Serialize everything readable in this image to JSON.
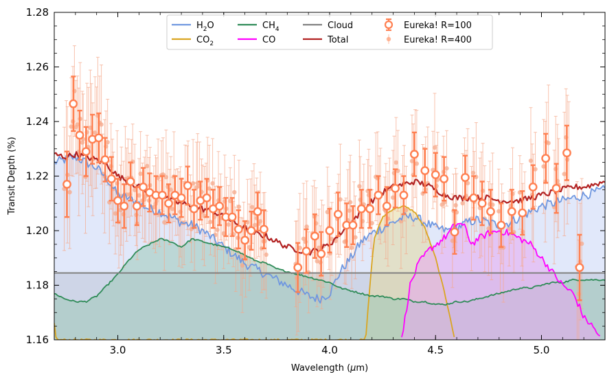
{
  "chart_data": {
    "type": "line",
    "title": "",
    "xlabel_main": "Wavelength (",
    "xlabel_mu": "μ",
    "xlabel_tail": "m)",
    "ylabel": "Transit Depth (%)",
    "xlim": [
      2.7,
      5.3
    ],
    "ylim": [
      1.16,
      1.28
    ],
    "x_ticks": [
      {
        "value": 3.0,
        "label": "3.0"
      },
      {
        "value": 3.5,
        "label": "3.5"
      },
      {
        "value": 4.0,
        "label": "4.0"
      },
      {
        "value": 4.5,
        "label": "4.5"
      },
      {
        "value": 5.0,
        "label": "5.0"
      }
    ],
    "y_ticks": [
      {
        "value": 1.16,
        "label": "1.16"
      },
      {
        "value": 1.18,
        "label": "1.18"
      },
      {
        "value": 1.2,
        "label": "1.20"
      },
      {
        "value": 1.22,
        "label": "1.22"
      },
      {
        "value": 1.24,
        "label": "1.24"
      },
      {
        "value": 1.26,
        "label": "1.26"
      },
      {
        "value": 1.28,
        "label": "1.28"
      }
    ],
    "legend": [
      {
        "key": "h2o",
        "main": "H",
        "sub": "2",
        "tail": "O",
        "color": "#6f97e0",
        "style": "line"
      },
      {
        "key": "co2",
        "main": "CO",
        "sub": "2",
        "tail": "",
        "color": "#daa520",
        "style": "line"
      },
      {
        "key": "ch4",
        "main": "CH",
        "sub": "4",
        "tail": "",
        "color": "#2e8b57",
        "style": "line"
      },
      {
        "key": "co",
        "main": "CO",
        "sub": "",
        "tail": "",
        "color": "#ff00ff",
        "style": "line"
      },
      {
        "key": "cloud",
        "main": "Cloud",
        "sub": "",
        "tail": "",
        "color": "#808080",
        "style": "line"
      },
      {
        "key": "total",
        "main": "Total",
        "sub": "",
        "tail": "",
        "color": "#b22222",
        "style": "line"
      },
      {
        "key": "r100",
        "main": "Eureka! R=100",
        "sub": "",
        "tail": "",
        "color": "#ff7f50",
        "style": "marker-large"
      },
      {
        "key": "r400",
        "main": "Eureka! R=400",
        "sub": "",
        "tail": "",
        "color": "#ffa07a",
        "style": "marker-small"
      }
    ],
    "cloud_level": 1.1845,
    "series": [
      {
        "name": "H2O",
        "color": "#6f97e0",
        "fill": "#c8d6f5",
        "points": [
          [
            2.7,
            1.225
          ],
          [
            2.75,
            1.226
          ],
          [
            2.8,
            1.227
          ],
          [
            2.85,
            1.225
          ],
          [
            2.9,
            1.223
          ],
          [
            2.95,
            1.219
          ],
          [
            3.0,
            1.213
          ],
          [
            3.05,
            1.212
          ],
          [
            3.1,
            1.21
          ],
          [
            3.15,
            1.208
          ],
          [
            3.2,
            1.207
          ],
          [
            3.25,
            1.205
          ],
          [
            3.3,
            1.203
          ],
          [
            3.35,
            1.202
          ],
          [
            3.4,
            1.2
          ],
          [
            3.45,
            1.197
          ],
          [
            3.5,
            1.194
          ],
          [
            3.55,
            1.191
          ],
          [
            3.6,
            1.188
          ],
          [
            3.65,
            1.186
          ],
          [
            3.7,
            1.184
          ],
          [
            3.75,
            1.182
          ],
          [
            3.8,
            1.18
          ],
          [
            3.85,
            1.178
          ],
          [
            3.9,
            1.176
          ],
          [
            3.95,
            1.175
          ],
          [
            4.0,
            1.177
          ],
          [
            4.05,
            1.185
          ],
          [
            4.1,
            1.19
          ],
          [
            4.15,
            1.196
          ],
          [
            4.2,
            1.199
          ],
          [
            4.25,
            1.201
          ],
          [
            4.3,
            1.203
          ],
          [
            4.35,
            1.205
          ],
          [
            4.4,
            1.205
          ],
          [
            4.45,
            1.203
          ],
          [
            4.5,
            1.201
          ],
          [
            4.55,
            1.2
          ],
          [
            4.6,
            1.201
          ],
          [
            4.65,
            1.203
          ],
          [
            4.7,
            1.204
          ],
          [
            4.75,
            1.203
          ],
          [
            4.8,
            1.202
          ],
          [
            4.85,
            1.203
          ],
          [
            4.9,
            1.205
          ],
          [
            4.95,
            1.207
          ],
          [
            5.0,
            1.209
          ],
          [
            5.05,
            1.21
          ],
          [
            5.1,
            1.211
          ],
          [
            5.15,
            1.212
          ],
          [
            5.2,
            1.213
          ],
          [
            5.25,
            1.214
          ],
          [
            5.3,
            1.215
          ]
        ]
      },
      {
        "name": "CO2",
        "color": "#daa520",
        "fill": "#e3d8a0",
        "points": [
          [
            2.7,
            1.166
          ],
          [
            2.71,
            1.16
          ],
          [
            4.17,
            1.16
          ],
          [
            4.19,
            1.18
          ],
          [
            4.21,
            1.197
          ],
          [
            4.25,
            1.205
          ],
          [
            4.3,
            1.208
          ],
          [
            4.35,
            1.209
          ],
          [
            4.4,
            1.207
          ],
          [
            4.45,
            1.201
          ],
          [
            4.5,
            1.19
          ],
          [
            4.54,
            1.178
          ],
          [
            4.57,
            1.168
          ],
          [
            4.59,
            1.16
          ]
        ]
      },
      {
        "name": "CH4",
        "color": "#2e8b57",
        "fill": "#9ec9b8",
        "points": [
          [
            2.7,
            1.177
          ],
          [
            2.75,
            1.175
          ],
          [
            2.8,
            1.174
          ],
          [
            2.85,
            1.174
          ],
          [
            2.9,
            1.176
          ],
          [
            2.95,
            1.18
          ],
          [
            3.0,
            1.184
          ],
          [
            3.05,
            1.189
          ],
          [
            3.1,
            1.193
          ],
          [
            3.15,
            1.195
          ],
          [
            3.2,
            1.197
          ],
          [
            3.25,
            1.196
          ],
          [
            3.3,
            1.194
          ],
          [
            3.35,
            1.197
          ],
          [
            3.4,
            1.196
          ],
          [
            3.45,
            1.195
          ],
          [
            3.5,
            1.194
          ],
          [
            3.55,
            1.193
          ],
          [
            3.6,
            1.191
          ],
          [
            3.65,
            1.189
          ],
          [
            3.7,
            1.188
          ],
          [
            3.75,
            1.186
          ],
          [
            3.8,
            1.185
          ],
          [
            3.85,
            1.184
          ],
          [
            3.9,
            1.183
          ],
          [
            3.95,
            1.182
          ],
          [
            4.0,
            1.181
          ],
          [
            4.05,
            1.179
          ],
          [
            4.1,
            1.178
          ],
          [
            4.15,
            1.177
          ],
          [
            4.2,
            1.176
          ],
          [
            4.25,
            1.176
          ],
          [
            4.3,
            1.175
          ],
          [
            4.35,
            1.175
          ],
          [
            4.4,
            1.174
          ],
          [
            4.45,
            1.174
          ],
          [
            4.5,
            1.173
          ],
          [
            4.55,
            1.173
          ],
          [
            4.6,
            1.174
          ],
          [
            4.65,
            1.174
          ],
          [
            4.7,
            1.175
          ],
          [
            4.75,
            1.176
          ],
          [
            4.8,
            1.177
          ],
          [
            4.85,
            1.178
          ],
          [
            4.9,
            1.179
          ],
          [
            4.95,
            1.179
          ],
          [
            5.0,
            1.18
          ],
          [
            5.05,
            1.181
          ],
          [
            5.1,
            1.181
          ],
          [
            5.15,
            1.182
          ],
          [
            5.2,
            1.182
          ],
          [
            5.25,
            1.182
          ],
          [
            5.3,
            1.182
          ]
        ]
      },
      {
        "name": "CO",
        "color": "#ff00ff",
        "fill": "#e8a8f0",
        "points": [
          [
            4.34,
            1.16
          ],
          [
            4.36,
            1.17
          ],
          [
            4.38,
            1.18
          ],
          [
            4.42,
            1.188
          ],
          [
            4.47,
            1.193
          ],
          [
            4.52,
            1.196
          ],
          [
            4.55,
            1.198
          ],
          [
            4.58,
            1.201
          ],
          [
            4.61,
            1.203
          ],
          [
            4.64,
            1.201
          ],
          [
            4.67,
            1.195
          ],
          [
            4.7,
            1.197
          ],
          [
            4.75,
            1.199
          ],
          [
            4.8,
            1.2
          ],
          [
            4.85,
            1.199
          ],
          [
            4.9,
            1.197
          ],
          [
            4.95,
            1.195
          ],
          [
            5.0,
            1.19
          ],
          [
            5.05,
            1.185
          ],
          [
            5.1,
            1.18
          ],
          [
            5.15,
            1.177
          ],
          [
            5.18,
            1.172
          ],
          [
            5.2,
            1.168
          ],
          [
            5.23,
            1.166
          ],
          [
            5.26,
            1.163
          ],
          [
            5.28,
            1.16
          ]
        ]
      },
      {
        "name": "Total",
        "color": "#b22222",
        "fill": "none",
        "points": [
          [
            2.7,
            1.228
          ],
          [
            2.75,
            1.227
          ],
          [
            2.8,
            1.228
          ],
          [
            2.85,
            1.227
          ],
          [
            2.9,
            1.226
          ],
          [
            2.95,
            1.224
          ],
          [
            3.0,
            1.22
          ],
          [
            3.05,
            1.218
          ],
          [
            3.1,
            1.216
          ],
          [
            3.15,
            1.214
          ],
          [
            3.2,
            1.213
          ],
          [
            3.25,
            1.211
          ],
          [
            3.3,
            1.21
          ],
          [
            3.35,
            1.209
          ],
          [
            3.4,
            1.208
          ],
          [
            3.45,
            1.207
          ],
          [
            3.5,
            1.205
          ],
          [
            3.55,
            1.203
          ],
          [
            3.6,
            1.201
          ],
          [
            3.65,
            1.199
          ],
          [
            3.7,
            1.198
          ],
          [
            3.75,
            1.196
          ],
          [
            3.8,
            1.194
          ],
          [
            3.85,
            1.193
          ],
          [
            3.9,
            1.192
          ],
          [
            3.95,
            1.193
          ],
          [
            4.0,
            1.195
          ],
          [
            4.05,
            1.199
          ],
          [
            4.1,
            1.203
          ],
          [
            4.15,
            1.207
          ],
          [
            4.2,
            1.211
          ],
          [
            4.25,
            1.214
          ],
          [
            4.3,
            1.216
          ],
          [
            4.35,
            1.217
          ],
          [
            4.4,
            1.218
          ],
          [
            4.45,
            1.217
          ],
          [
            4.5,
            1.215
          ],
          [
            4.55,
            1.213
          ],
          [
            4.6,
            1.212
          ],
          [
            4.65,
            1.212
          ],
          [
            4.7,
            1.212
          ],
          [
            4.75,
            1.212
          ],
          [
            4.8,
            1.211
          ],
          [
            4.85,
            1.211
          ],
          [
            4.9,
            1.211
          ],
          [
            4.95,
            1.212
          ],
          [
            5.0,
            1.213
          ],
          [
            5.05,
            1.214
          ],
          [
            5.1,
            1.215
          ],
          [
            5.15,
            1.216
          ],
          [
            5.2,
            1.216
          ],
          [
            5.25,
            1.217
          ],
          [
            5.3,
            1.218
          ]
        ]
      }
    ],
    "r100": [
      {
        "x": 2.76,
        "y": 1.217,
        "err": 0.012
      },
      {
        "x": 2.79,
        "y": 1.2465,
        "err": 0.01
      },
      {
        "x": 2.82,
        "y": 1.235,
        "err": 0.009
      },
      {
        "x": 2.85,
        "y": 1.229,
        "err": 0.009
      },
      {
        "x": 2.88,
        "y": 1.2335,
        "err": 0.009
      },
      {
        "x": 2.91,
        "y": 1.234,
        "err": 0.009
      },
      {
        "x": 2.94,
        "y": 1.226,
        "err": 0.008
      },
      {
        "x": 2.97,
        "y": 1.219,
        "err": 0.008
      },
      {
        "x": 3.0,
        "y": 1.211,
        "err": 0.008
      },
      {
        "x": 3.03,
        "y": 1.209,
        "err": 0.008
      },
      {
        "x": 3.06,
        "y": 1.218,
        "err": 0.007
      },
      {
        "x": 3.09,
        "y": 1.209,
        "err": 0.007
      },
      {
        "x": 3.12,
        "y": 1.216,
        "err": 0.007
      },
      {
        "x": 3.15,
        "y": 1.214,
        "err": 0.007
      },
      {
        "x": 3.18,
        "y": 1.213,
        "err": 0.007
      },
      {
        "x": 3.21,
        "y": 1.213,
        "err": 0.007
      },
      {
        "x": 3.24,
        "y": 1.21,
        "err": 0.007
      },
      {
        "x": 3.27,
        "y": 1.213,
        "err": 0.007
      },
      {
        "x": 3.3,
        "y": 1.212,
        "err": 0.007
      },
      {
        "x": 3.33,
        "y": 1.2165,
        "err": 0.007
      },
      {
        "x": 3.36,
        "y": 1.208,
        "err": 0.007
      },
      {
        "x": 3.39,
        "y": 1.211,
        "err": 0.007
      },
      {
        "x": 3.42,
        "y": 1.212,
        "err": 0.007
      },
      {
        "x": 3.45,
        "y": 1.208,
        "err": 0.007
      },
      {
        "x": 3.48,
        "y": 1.209,
        "err": 0.007
      },
      {
        "x": 3.51,
        "y": 1.205,
        "err": 0.007
      },
      {
        "x": 3.54,
        "y": 1.205,
        "err": 0.007
      },
      {
        "x": 3.57,
        "y": 1.2005,
        "err": 0.007
      },
      {
        "x": 3.6,
        "y": 1.1965,
        "err": 0.007
      },
      {
        "x": 3.63,
        "y": 1.2,
        "err": 0.007
      },
      {
        "x": 3.66,
        "y": 1.207,
        "err": 0.007
      },
      {
        "x": 3.69,
        "y": 1.2005,
        "err": 0.007
      },
      {
        "x": 3.85,
        "y": 1.1865,
        "err": 0.009
      },
      {
        "x": 3.89,
        "y": 1.1925,
        "err": 0.008
      },
      {
        "x": 3.93,
        "y": 1.198,
        "err": 0.008
      },
      {
        "x": 3.96,
        "y": 1.1915,
        "err": 0.008
      },
      {
        "x": 4.0,
        "y": 1.2,
        "err": 0.008
      },
      {
        "x": 4.04,
        "y": 1.206,
        "err": 0.008
      },
      {
        "x": 4.08,
        "y": 1.202,
        "err": 0.008
      },
      {
        "x": 4.11,
        "y": 1.202,
        "err": 0.007
      },
      {
        "x": 4.15,
        "y": 1.208,
        "err": 0.007
      },
      {
        "x": 4.19,
        "y": 1.208,
        "err": 0.007
      },
      {
        "x": 4.23,
        "y": 1.213,
        "err": 0.007
      },
      {
        "x": 4.27,
        "y": 1.209,
        "err": 0.007
      },
      {
        "x": 4.31,
        "y": 1.2155,
        "err": 0.007
      },
      {
        "x": 4.35,
        "y": 1.213,
        "err": 0.007
      },
      {
        "x": 4.4,
        "y": 1.228,
        "err": 0.008
      },
      {
        "x": 4.45,
        "y": 1.222,
        "err": 0.008
      },
      {
        "x": 4.5,
        "y": 1.2205,
        "err": 0.008
      },
      {
        "x": 4.54,
        "y": 1.219,
        "err": 0.008
      },
      {
        "x": 4.59,
        "y": 1.1995,
        "err": 0.008
      },
      {
        "x": 4.64,
        "y": 1.2195,
        "err": 0.008
      },
      {
        "x": 4.68,
        "y": 1.212,
        "err": 0.008
      },
      {
        "x": 4.72,
        "y": 1.21,
        "err": 0.008
      },
      {
        "x": 4.76,
        "y": 1.207,
        "err": 0.008
      },
      {
        "x": 4.81,
        "y": 1.202,
        "err": 0.008
      },
      {
        "x": 4.86,
        "y": 1.207,
        "err": 0.008
      },
      {
        "x": 4.91,
        "y": 1.2065,
        "err": 0.008
      },
      {
        "x": 4.96,
        "y": 1.216,
        "err": 0.008
      },
      {
        "x": 5.02,
        "y": 1.2265,
        "err": 0.009
      },
      {
        "x": 5.07,
        "y": 1.2155,
        "err": 0.009
      },
      {
        "x": 5.12,
        "y": 1.2285,
        "err": 0.01
      },
      {
        "x": 5.18,
        "y": 1.1865,
        "err": 0.012
      }
    ]
  }
}
